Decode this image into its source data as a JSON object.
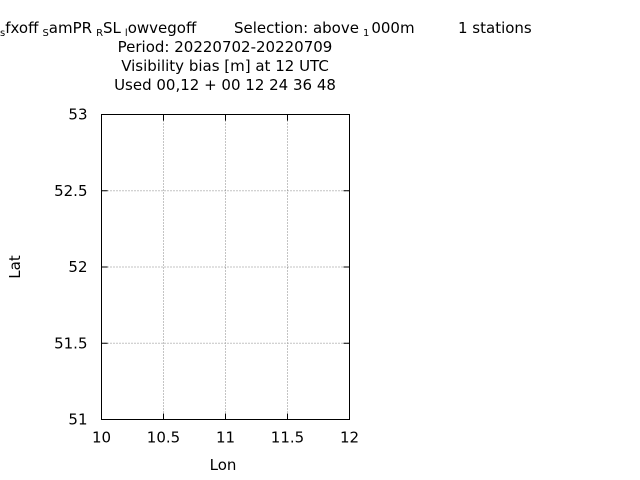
{
  "title": {
    "line1": {
      "part_a_sub": "s",
      "part_a": "fxoff",
      "part_b_sub": "S",
      "part_b": "amPR",
      "part_c_sub": "R",
      "part_c": "SL",
      "part_d_sub": "l",
      "part_d": "owvegoff",
      "selection": "Selection: above",
      "selection_sub": "1",
      "selection_rest": "000m",
      "stations": "1 stations"
    },
    "line2": "Period: 20220702-20220709",
    "line3": "Visibility bias [m] at  12 UTC",
    "line4": "Used  00,12  + 00 12 24 36 48"
  },
  "chart_data": {
    "type": "scatter",
    "xlabel": "Lon",
    "ylabel": "Lat",
    "xlim": [
      10,
      12
    ],
    "ylim": [
      51,
      53
    ],
    "xticks": [
      10,
      10.5,
      11,
      11.5,
      12
    ],
    "yticks": [
      51,
      51.5,
      52,
      52.5,
      53
    ],
    "xtick_labels": [
      "10",
      "10.5",
      "11",
      "11.5",
      "12"
    ],
    "ytick_labels": [
      "51",
      "51.5",
      "52",
      "52.5",
      "53"
    ],
    "grid": true,
    "series": []
  }
}
